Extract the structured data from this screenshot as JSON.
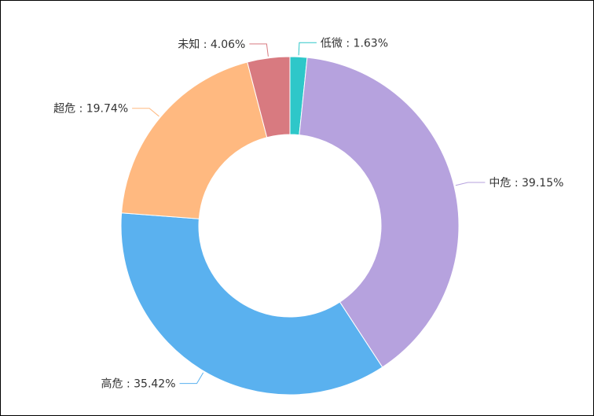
{
  "chart_data": {
    "type": "pie",
    "donut": true,
    "title": "",
    "slices": [
      {
        "name": "低微",
        "label": "低微 : 1.63%",
        "value": 1.63,
        "color": "#2ec7c9"
      },
      {
        "name": "中危",
        "label": "中危 : 39.15%",
        "value": 39.15,
        "color": "#b6a2de"
      },
      {
        "name": "高危",
        "label": "高危 : 35.42%",
        "value": 35.42,
        "color": "#5ab1ef"
      },
      {
        "name": "超危",
        "label": "超危 : 19.74%",
        "value": 19.74,
        "color": "#ffb980"
      },
      {
        "name": "未知",
        "label": "未知 : 4.06%",
        "value": 4.06,
        "color": "#d87a80"
      }
    ],
    "start_direction": "top, clockwise",
    "label_placement": "outside with leader lines",
    "legend": "none"
  }
}
